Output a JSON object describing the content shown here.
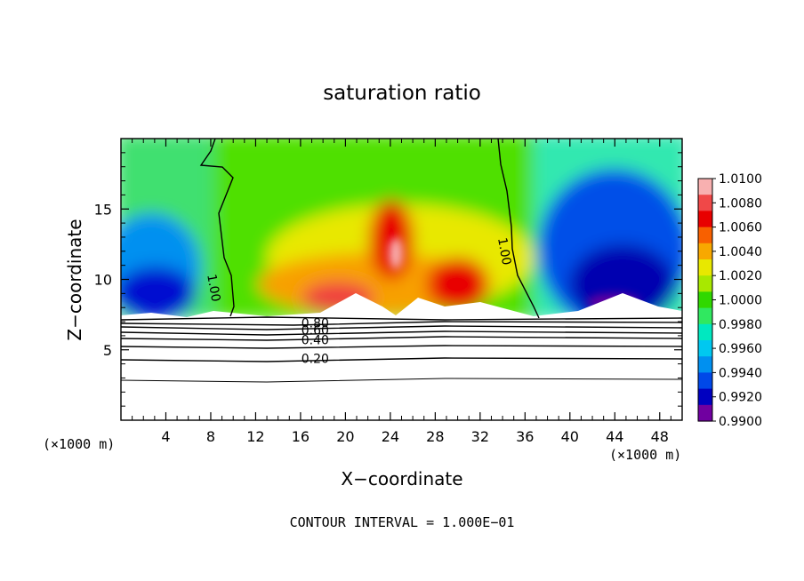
{
  "chart_data": {
    "type": "heatmap",
    "title": "saturation ratio",
    "xlabel": "X−coordinate",
    "ylabel": "Z−coordinate",
    "x_unit_label": "(×1000 m)",
    "z_unit_label": "(×1000 m)",
    "footer": "CONTOUR INTERVAL = 1.000E−01",
    "xlim": [
      0,
      50
    ],
    "ylim": [
      0,
      20
    ],
    "x_ticks": [
      4,
      8,
      12,
      16,
      20,
      24,
      28,
      32,
      36,
      40,
      44,
      48
    ],
    "y_ticks": [
      5,
      10,
      15
    ],
    "colorbar": {
      "min": 0.99,
      "max": 1.01,
      "tick_labels": [
        "1.0100",
        "1.0080",
        "1.0060",
        "1.0040",
        "1.0020",
        "1.0000",
        "0.9980",
        "0.9960",
        "0.9940",
        "0.9920",
        "0.9900"
      ],
      "colors": [
        "#f8b0b0",
        "#f04848",
        "#e80000",
        "#f86000",
        "#f8a800",
        "#e8e800",
        "#a8e800",
        "#30d800",
        "#30e860",
        "#00e8c0",
        "#00c8f0",
        "#0090f0",
        "#0048e8",
        "#0000c0",
        "#7000a0"
      ]
    },
    "contour_labels": [
      {
        "text": "1.00",
        "x": 8.3,
        "z": 9.4
      },
      {
        "text": "1.00",
        "x": 34.2,
        "z": 12.0
      },
      {
        "text": "0.80",
        "x": 17.3,
        "z": 6.9
      },
      {
        "text": "0.60",
        "x": 17.3,
        "z": 6.4
      },
      {
        "text": "0.40",
        "x": 17.3,
        "z": 5.7
      },
      {
        "text": "0.20",
        "x": 17.3,
        "z": 4.4
      }
    ],
    "field_description_values": {
      "cloud_free_region_z_top": 7.5,
      "contour_levels_below": [
        0.2,
        0.4,
        0.6,
        0.8,
        1.0
      ]
    }
  }
}
